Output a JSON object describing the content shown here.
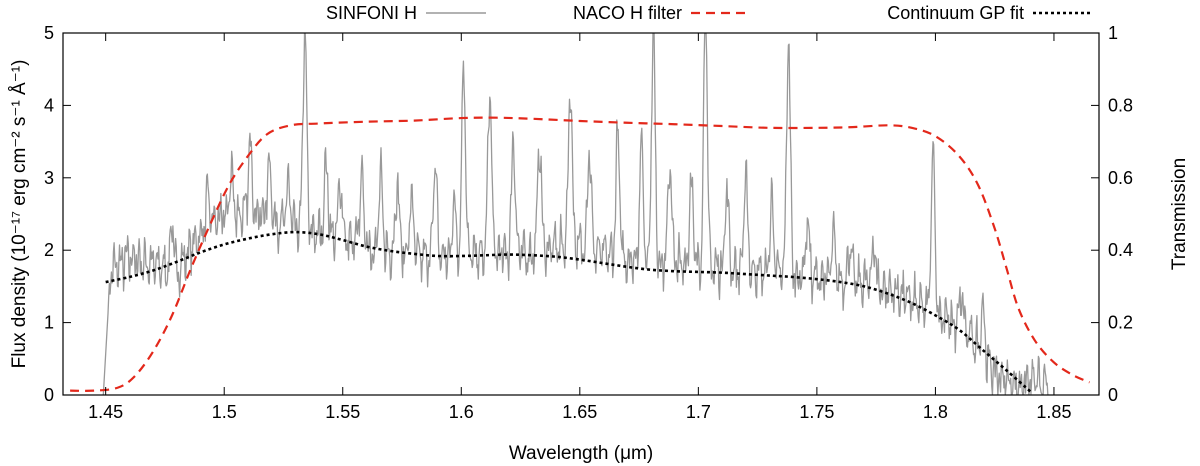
{
  "chart_data": {
    "type": "line",
    "title": "",
    "xlabel": "Wavelength (μm)",
    "ylabel": "Flux density (10⁻¹⁷ erg cm⁻² s⁻¹ Å⁻¹)",
    "y2label": "Transmission",
    "xlim": [
      1.432,
      1.869
    ],
    "ylim": [
      0,
      5
    ],
    "y2lim": [
      0,
      1
    ],
    "xticks": [
      1.45,
      1.5,
      1.55,
      1.6,
      1.65,
      1.7,
      1.75,
      1.8,
      1.85
    ],
    "xtick_labels": [
      "1.45",
      "1.5",
      "1.55",
      "1.6",
      "1.65",
      "1.7",
      "1.75",
      "1.8",
      "1.85"
    ],
    "yticks": [
      0,
      1,
      2,
      3,
      4,
      5
    ],
    "ytick_labels": [
      "0",
      "1",
      "2",
      "3",
      "4",
      "5"
    ],
    "y2ticks": [
      0,
      0.2,
      0.4,
      0.6,
      0.8,
      1
    ],
    "y2tick_labels": [
      "0",
      "0.2",
      "0.4",
      "0.6",
      "0.8",
      "1"
    ],
    "legend_position": "top-outside",
    "series": [
      {
        "name": "SINFONI H",
        "axis": "left",
        "color": "#999999",
        "style": "solid",
        "baseline": [
          [
            1.449,
            0.0
          ],
          [
            1.452,
            1.7
          ],
          [
            1.46,
            1.9
          ],
          [
            1.47,
            1.8
          ],
          [
            1.48,
            1.7
          ],
          [
            1.487,
            2.1
          ],
          [
            1.495,
            2.4
          ],
          [
            1.505,
            2.5
          ],
          [
            1.515,
            2.5
          ],
          [
            1.525,
            2.35
          ],
          [
            1.535,
            2.25
          ],
          [
            1.545,
            2.2
          ],
          [
            1.555,
            2.1
          ],
          [
            1.565,
            2.0
          ],
          [
            1.575,
            1.95
          ],
          [
            1.585,
            1.9
          ],
          [
            1.6,
            1.9
          ],
          [
            1.615,
            1.95
          ],
          [
            1.63,
            1.95
          ],
          [
            1.645,
            2.1
          ],
          [
            1.655,
            2.0
          ],
          [
            1.665,
            1.9
          ],
          [
            1.68,
            1.85
          ],
          [
            1.695,
            1.8
          ],
          [
            1.71,
            1.75
          ],
          [
            1.725,
            1.7
          ],
          [
            1.74,
            1.65
          ],
          [
            1.755,
            1.6
          ],
          [
            1.77,
            1.55
          ],
          [
            1.785,
            1.4
          ],
          [
            1.795,
            1.2
          ],
          [
            1.805,
            1.05
          ],
          [
            1.815,
            0.8
          ],
          [
            1.825,
            0.3
          ],
          [
            1.835,
            0.1
          ],
          [
            1.842,
            0.2
          ],
          [
            1.848,
            0.05
          ]
        ],
        "emission_peaks": [
          [
            1.478,
            0.6
          ],
          [
            1.493,
            0.4
          ],
          [
            1.503,
            0.6
          ],
          [
            1.511,
            1.0
          ],
          [
            1.519,
            0.8
          ],
          [
            1.527,
            0.6
          ],
          [
            1.534,
            2.8
          ],
          [
            1.543,
            1.0
          ],
          [
            1.549,
            0.8
          ],
          [
            1.558,
            1.0
          ],
          [
            1.566,
            1.0
          ],
          [
            1.573,
            1.0
          ],
          [
            1.579,
            0.8
          ],
          [
            1.589,
            1.3
          ],
          [
            1.597,
            0.8
          ],
          [
            1.601,
            2.7
          ],
          [
            1.612,
            2.3
          ],
          [
            1.622,
            1.6
          ],
          [
            1.633,
            1.5
          ],
          [
            1.646,
            2.2
          ],
          [
            1.654,
            1.4
          ],
          [
            1.666,
            1.7
          ],
          [
            1.676,
            1.6
          ],
          [
            1.681,
            3.2
          ],
          [
            1.688,
            1.4
          ],
          [
            1.697,
            1.2
          ],
          [
            1.703,
            3.5
          ],
          [
            1.712,
            1.1
          ],
          [
            1.72,
            1.3
          ],
          [
            1.731,
            1.0
          ],
          [
            1.738,
            3.3
          ],
          [
            1.746,
            0.8
          ],
          [
            1.757,
            0.6
          ],
          [
            1.764,
            0.5
          ],
          [
            1.774,
            0.6
          ],
          [
            1.799,
            2.3
          ],
          [
            1.811,
            0.5
          ],
          [
            1.82,
            0.7
          ]
        ]
      },
      {
        "name": "NACO H filter",
        "axis": "right",
        "color": "#e3281b",
        "style": "dashed",
        "points": [
          [
            1.435,
            0.012
          ],
          [
            1.445,
            0.012
          ],
          [
            1.455,
            0.02
          ],
          [
            1.462,
            0.05
          ],
          [
            1.47,
            0.12
          ],
          [
            1.478,
            0.22
          ],
          [
            1.486,
            0.35
          ],
          [
            1.494,
            0.47
          ],
          [
            1.502,
            0.58
          ],
          [
            1.51,
            0.66
          ],
          [
            1.518,
            0.72
          ],
          [
            1.528,
            0.745
          ],
          [
            1.54,
            0.75
          ],
          [
            1.56,
            0.755
          ],
          [
            1.58,
            0.758
          ],
          [
            1.6,
            0.765
          ],
          [
            1.615,
            0.766
          ],
          [
            1.63,
            0.763
          ],
          [
            1.65,
            0.757
          ],
          [
            1.67,
            0.752
          ],
          [
            1.69,
            0.748
          ],
          [
            1.71,
            0.743
          ],
          [
            1.73,
            0.738
          ],
          [
            1.75,
            0.738
          ],
          [
            1.765,
            0.74
          ],
          [
            1.78,
            0.745
          ],
          [
            1.79,
            0.738
          ],
          [
            1.8,
            0.715
          ],
          [
            1.81,
            0.66
          ],
          [
            1.818,
            0.58
          ],
          [
            1.825,
            0.46
          ],
          [
            1.83,
            0.35
          ],
          [
            1.835,
            0.24
          ],
          [
            1.842,
            0.15
          ],
          [
            1.85,
            0.09
          ],
          [
            1.858,
            0.055
          ],
          [
            1.865,
            0.035
          ]
        ]
      },
      {
        "name": "Continuum GP fit",
        "axis": "left",
        "color": "#000000",
        "style": "dotted",
        "points": [
          [
            1.45,
            1.56
          ],
          [
            1.46,
            1.63
          ],
          [
            1.47,
            1.72
          ],
          [
            1.48,
            1.84
          ],
          [
            1.49,
            1.97
          ],
          [
            1.5,
            2.08
          ],
          [
            1.51,
            2.16
          ],
          [
            1.52,
            2.22
          ],
          [
            1.53,
            2.25
          ],
          [
            1.54,
            2.22
          ],
          [
            1.55,
            2.14
          ],
          [
            1.56,
            2.05
          ],
          [
            1.57,
            1.99
          ],
          [
            1.58,
            1.95
          ],
          [
            1.59,
            1.92
          ],
          [
            1.6,
            1.92
          ],
          [
            1.61,
            1.93
          ],
          [
            1.62,
            1.94
          ],
          [
            1.63,
            1.93
          ],
          [
            1.64,
            1.91
          ],
          [
            1.65,
            1.87
          ],
          [
            1.66,
            1.82
          ],
          [
            1.67,
            1.77
          ],
          [
            1.68,
            1.73
          ],
          [
            1.69,
            1.71
          ],
          [
            1.7,
            1.7
          ],
          [
            1.71,
            1.69
          ],
          [
            1.72,
            1.67
          ],
          [
            1.73,
            1.65
          ],
          [
            1.74,
            1.63
          ],
          [
            1.75,
            1.6
          ],
          [
            1.76,
            1.56
          ],
          [
            1.77,
            1.5
          ],
          [
            1.78,
            1.4
          ],
          [
            1.79,
            1.27
          ],
          [
            1.8,
            1.1
          ],
          [
            1.81,
            0.9
          ],
          [
            1.82,
            0.62
          ],
          [
            1.83,
            0.34
          ],
          [
            1.84,
            0.05
          ]
        ]
      }
    ]
  }
}
